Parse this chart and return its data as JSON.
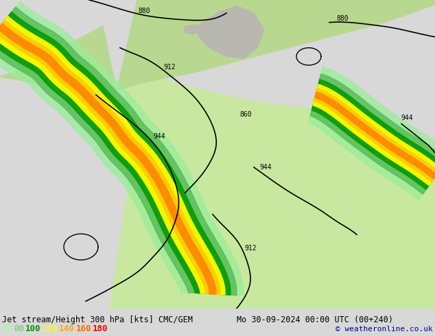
{
  "title_left": "Jet stream/Height 300 hPa [kts] CMC/GEM",
  "title_right": "Mo 30-09-2024 00:00 UTC (00+240)",
  "copyright": "© weatheronline.co.uk",
  "legend_values": [
    60,
    80,
    100,
    120,
    140,
    160,
    180
  ],
  "legend_colors": [
    "#99ff99",
    "#66cc66",
    "#009900",
    "#ffff00",
    "#ffaa00",
    "#ff6600",
    "#ff0000"
  ],
  "bg_color": "#d8d8d8",
  "ocean_color": "#d0d0d0",
  "land_color_light": "#c8e8a0",
  "land_color_canada": "#b8d890",
  "gray_land": "#b8b8b0",
  "title_color": "#000000",
  "title_fontsize": 9,
  "copyright_color": "#000099",
  "fig_width": 6.34,
  "fig_height": 4.9,
  "jet60": "#99ee99",
  "jet80": "#55bb55",
  "jet100": "#009900",
  "jet120": "#ffff00",
  "jet140": "#ffcc00",
  "jet160": "#ff8800",
  "jet180": "#ff2200"
}
